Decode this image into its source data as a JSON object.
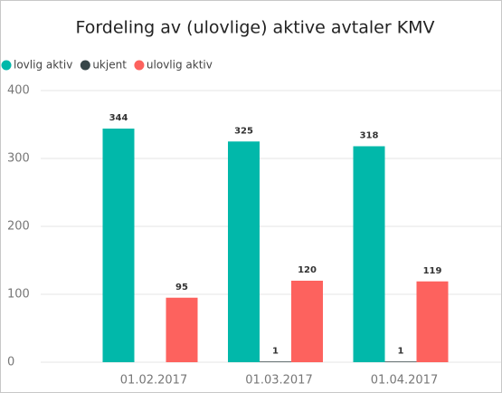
{
  "chart_data": {
    "type": "bar",
    "title": "Fordeling av (ulovlige) aktive avtaler KMV",
    "categories": [
      "01.02.2017",
      "01.03.2017",
      "01.04.2017"
    ],
    "series": [
      {
        "name": "lovlig aktiv",
        "color": "#01b8aa",
        "values": [
          344,
          325,
          318
        ]
      },
      {
        "name": "ukjent",
        "color": "#374649",
        "values": [
          null,
          1,
          1
        ]
      },
      {
        "name": "ulovlig aktiv",
        "color": "#fd625e",
        "values": [
          95,
          120,
          119
        ]
      }
    ],
    "ylim": [
      0,
      400
    ],
    "yticks": [
      0,
      100,
      200,
      300,
      400
    ],
    "grid": true,
    "legend": "top-left"
  }
}
